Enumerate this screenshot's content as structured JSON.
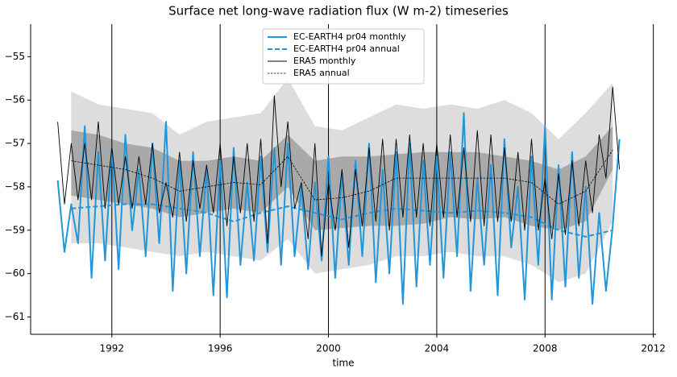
{
  "chart_data": {
    "type": "line",
    "title": "Surface net long-wave radiation flux (W m-2) timeseries",
    "xlabel": "time",
    "xlim": [
      1989,
      2012.1
    ],
    "ylim": [
      -61.4,
      -54.25
    ],
    "xticks": [
      1992,
      1996,
      2000,
      2004,
      2008,
      2012
    ],
    "yticks": [
      {
        "value": -55,
        "label": "−55"
      },
      {
        "value": -56,
        "label": "−56"
      },
      {
        "value": -57,
        "label": "−57"
      },
      {
        "value": -58,
        "label": "−58"
      },
      {
        "value": -59,
        "label": "−59"
      },
      {
        "value": -60,
        "label": "−60"
      },
      {
        "value": -61,
        "label": "−61"
      }
    ],
    "grid": "x",
    "grid_color": "#000000",
    "legend": "upper center",
    "bands": [
      {
        "color": "#dddddd",
        "x": [
          1990.5,
          1991.5,
          1992.5,
          1993.5,
          1994.5,
          1995.5,
          1996.5,
          1997.5,
          1998.5,
          1999.5,
          2000.5,
          2001.5,
          2002.5,
          2003.5,
          2004.5,
          2005.5,
          2006.5,
          2007.5,
          2008.5,
          2009.5,
          2010.5
        ],
        "upper": [
          -55.8,
          -56.1,
          -56.2,
          -56.3,
          -56.8,
          -56.5,
          -56.4,
          -56.3,
          -55.5,
          -56.6,
          -56.7,
          -56.4,
          -56.1,
          -56.2,
          -56.1,
          -56.2,
          -56.0,
          -56.3,
          -56.9,
          -56.3,
          -55.6
        ],
        "lower": [
          -59.3,
          -59.3,
          -59.4,
          -59.5,
          -59.6,
          -59.5,
          -59.6,
          -59.7,
          -59.2,
          -60.0,
          -59.9,
          -59.8,
          -59.6,
          -59.6,
          -59.5,
          -59.6,
          -59.6,
          -59.8,
          -60.2,
          -60.0,
          -58.8
        ]
      },
      {
        "color": "#a9a9a9",
        "x": [
          1990.5,
          1991.5,
          1992.5,
          1993.5,
          1994.5,
          1995.5,
          1996.5,
          1997.5,
          1998.5,
          1999.5,
          2000.5,
          2001.5,
          2002.5,
          2003.5,
          2004.5,
          2005.5,
          2006.5,
          2007.5,
          2008.5,
          2009.5,
          2010.5
        ],
        "upper": [
          -56.7,
          -56.8,
          -57.0,
          -57.1,
          -57.4,
          -57.4,
          -57.3,
          -57.4,
          -56.8,
          -57.4,
          -57.3,
          -57.3,
          -57.25,
          -57.2,
          -57.2,
          -57.2,
          -57.3,
          -57.4,
          -57.6,
          -57.3,
          -56.6
        ],
        "lower": [
          -58.2,
          -58.3,
          -58.4,
          -58.5,
          -58.7,
          -58.6,
          -58.5,
          -58.6,
          -58.0,
          -59.0,
          -58.95,
          -58.9,
          -58.9,
          -58.85,
          -58.7,
          -58.75,
          -58.7,
          -58.9,
          -59.0,
          -58.8,
          -57.6
        ]
      }
    ],
    "series": [
      {
        "name": "EC-EARTH4 pr04 monthly",
        "color": "#2196db",
        "width": 2,
        "dash": "solid",
        "x": [
          1990,
          1990.25,
          1990.5,
          1990.75,
          1991,
          1991.25,
          1991.5,
          1991.75,
          1992,
          1992.25,
          1992.5,
          1992.75,
          1993,
          1993.25,
          1993.5,
          1993.75,
          1994,
          1994.25,
          1994.5,
          1994.75,
          1995,
          1995.25,
          1995.5,
          1995.75,
          1996,
          1996.25,
          1996.5,
          1996.75,
          1997,
          1997.25,
          1997.5,
          1997.75,
          1998,
          1998.25,
          1998.5,
          1998.75,
          1999,
          1999.25,
          1999.5,
          1999.75,
          2000,
          2000.25,
          2000.5,
          2000.75,
          2001,
          2001.25,
          2001.5,
          2001.75,
          2002,
          2002.25,
          2002.5,
          2002.75,
          2003,
          2003.25,
          2003.5,
          2003.75,
          2004,
          2004.25,
          2004.5,
          2004.75,
          2005,
          2005.25,
          2005.5,
          2005.75,
          2006,
          2006.25,
          2006.5,
          2006.75,
          2007,
          2007.25,
          2007.5,
          2007.75,
          2008,
          2008.25,
          2008.5,
          2008.75,
          2009,
          2009.25,
          2009.5,
          2009.75,
          2010,
          2010.25,
          2010.5,
          2010.75
        ],
        "values": [
          -57.85,
          -59.5,
          -58.4,
          -59.3,
          -56.6,
          -60.1,
          -57.2,
          -59.7,
          -57.1,
          -59.9,
          -56.8,
          -59.0,
          -57.6,
          -59.6,
          -57.0,
          -59.3,
          -56.5,
          -60.4,
          -57.4,
          -60.0,
          -57.2,
          -59.6,
          -57.6,
          -60.5,
          -57.4,
          -60.55,
          -57.1,
          -59.8,
          -57.9,
          -59.7,
          -57.3,
          -59.5,
          -57.1,
          -59.8,
          -57.0,
          -59.6,
          -58.0,
          -59.9,
          -57.9,
          -59.7,
          -57.3,
          -60.1,
          -57.7,
          -59.8,
          -57.4,
          -59.6,
          -57.0,
          -60.2,
          -57.6,
          -60.0,
          -57.2,
          -60.7,
          -57.0,
          -60.3,
          -57.4,
          -59.8,
          -57.3,
          -60.1,
          -57.2,
          -59.6,
          -56.3,
          -60.4,
          -57.8,
          -59.8,
          -57.5,
          -60.5,
          -56.9,
          -59.4,
          -58.0,
          -60.6,
          -57.3,
          -59.8,
          -56.6,
          -60.6,
          -57.5,
          -60.3,
          -57.2,
          -60.1,
          -58.0,
          -60.7,
          -58.6,
          -60.4,
          -58.9,
          -56.9
        ]
      },
      {
        "name": "EC-EARTH4 pr04 annual",
        "color": "#2196db",
        "width": 2,
        "dash": "dashed",
        "x": [
          1990.5,
          1991.5,
          1992.5,
          1993.5,
          1994.5,
          1995.5,
          1996.5,
          1997.5,
          1998.5,
          1999.5,
          2000.5,
          2001.5,
          2002.5,
          2003.5,
          2004.5,
          2005.5,
          2006.5,
          2007.5,
          2008.5,
          2009.5,
          2010.5
        ],
        "values": [
          -58.5,
          -58.45,
          -58.4,
          -58.4,
          -58.5,
          -58.6,
          -58.8,
          -58.6,
          -58.45,
          -58.6,
          -58.75,
          -58.6,
          -58.5,
          -58.55,
          -58.6,
          -58.55,
          -58.6,
          -58.7,
          -59.0,
          -59.15,
          -59.0
        ]
      },
      {
        "name": "ERA5 monthly",
        "color": "#000000",
        "width": 0.9,
        "dash": "solid",
        "x": [
          1990,
          1990.25,
          1990.5,
          1990.75,
          1991,
          1991.25,
          1991.5,
          1991.75,
          1992,
          1992.25,
          1992.5,
          1992.75,
          1993,
          1993.25,
          1993.5,
          1993.75,
          1994,
          1994.25,
          1994.5,
          1994.75,
          1995,
          1995.25,
          1995.5,
          1995.75,
          1996,
          1996.25,
          1996.5,
          1996.75,
          1997,
          1997.25,
          1997.5,
          1997.75,
          1998,
          1998.25,
          1998.5,
          1998.75,
          1999,
          1999.25,
          1999.5,
          1999.75,
          2000,
          2000.25,
          2000.5,
          2000.75,
          2001,
          2001.25,
          2001.5,
          2001.75,
          2002,
          2002.25,
          2002.5,
          2002.75,
          2003,
          2003.25,
          2003.5,
          2003.75,
          2004,
          2004.25,
          2004.5,
          2004.75,
          2005,
          2005.25,
          2005.5,
          2005.75,
          2006,
          2006.25,
          2006.5,
          2006.75,
          2007,
          2007.25,
          2007.5,
          2007.75,
          2008,
          2008.25,
          2008.5,
          2008.75,
          2009,
          2009.25,
          2009.5,
          2009.75,
          2010,
          2010.25,
          2010.5,
          2010.75
        ],
        "values": [
          -56.5,
          -58.4,
          -57.0,
          -58.3,
          -57.0,
          -58.3,
          -56.5,
          -58.5,
          -57.1,
          -58.4,
          -57.3,
          -58.5,
          -57.3,
          -58.4,
          -57.0,
          -58.6,
          -57.9,
          -58.7,
          -57.2,
          -58.8,
          -57.4,
          -58.5,
          -57.5,
          -58.6,
          -57.0,
          -58.9,
          -57.3,
          -58.6,
          -57.0,
          -58.8,
          -56.9,
          -59.3,
          -55.9,
          -58.0,
          -56.5,
          -58.5,
          -57.9,
          -59.2,
          -57.0,
          -59.6,
          -57.9,
          -59.0,
          -57.6,
          -59.4,
          -57.6,
          -58.9,
          -57.1,
          -58.8,
          -56.9,
          -59.0,
          -56.9,
          -58.7,
          -56.8,
          -58.7,
          -57.0,
          -58.9,
          -57.0,
          -58.7,
          -56.8,
          -58.7,
          -57.1,
          -58.8,
          -56.7,
          -58.9,
          -56.8,
          -58.8,
          -57.1,
          -58.8,
          -57.2,
          -59.0,
          -56.9,
          -59.0,
          -57.8,
          -59.2,
          -57.7,
          -59.1,
          -57.4,
          -58.9,
          -57.4,
          -58.6,
          -56.8,
          -57.8,
          -55.7,
          -57.6
        ]
      },
      {
        "name": "ERA5 annual",
        "color": "#000000",
        "width": 0.8,
        "dash": "dotted",
        "x": [
          1990.5,
          1991.5,
          1992.5,
          1993.5,
          1994.5,
          1995.5,
          1996.5,
          1997.5,
          1998.5,
          1999.5,
          2000.5,
          2001.5,
          2002.5,
          2003.5,
          2004.5,
          2005.5,
          2006.5,
          2007.5,
          2008.5,
          2009.5,
          2010.5
        ],
        "values": [
          -57.4,
          -57.5,
          -57.6,
          -57.8,
          -58.1,
          -58.0,
          -57.9,
          -57.95,
          -57.3,
          -58.3,
          -58.25,
          -58.1,
          -57.8,
          -57.8,
          -57.8,
          -57.8,
          -57.8,
          -57.9,
          -58.4,
          -58.1,
          -57.15
        ]
      }
    ]
  }
}
